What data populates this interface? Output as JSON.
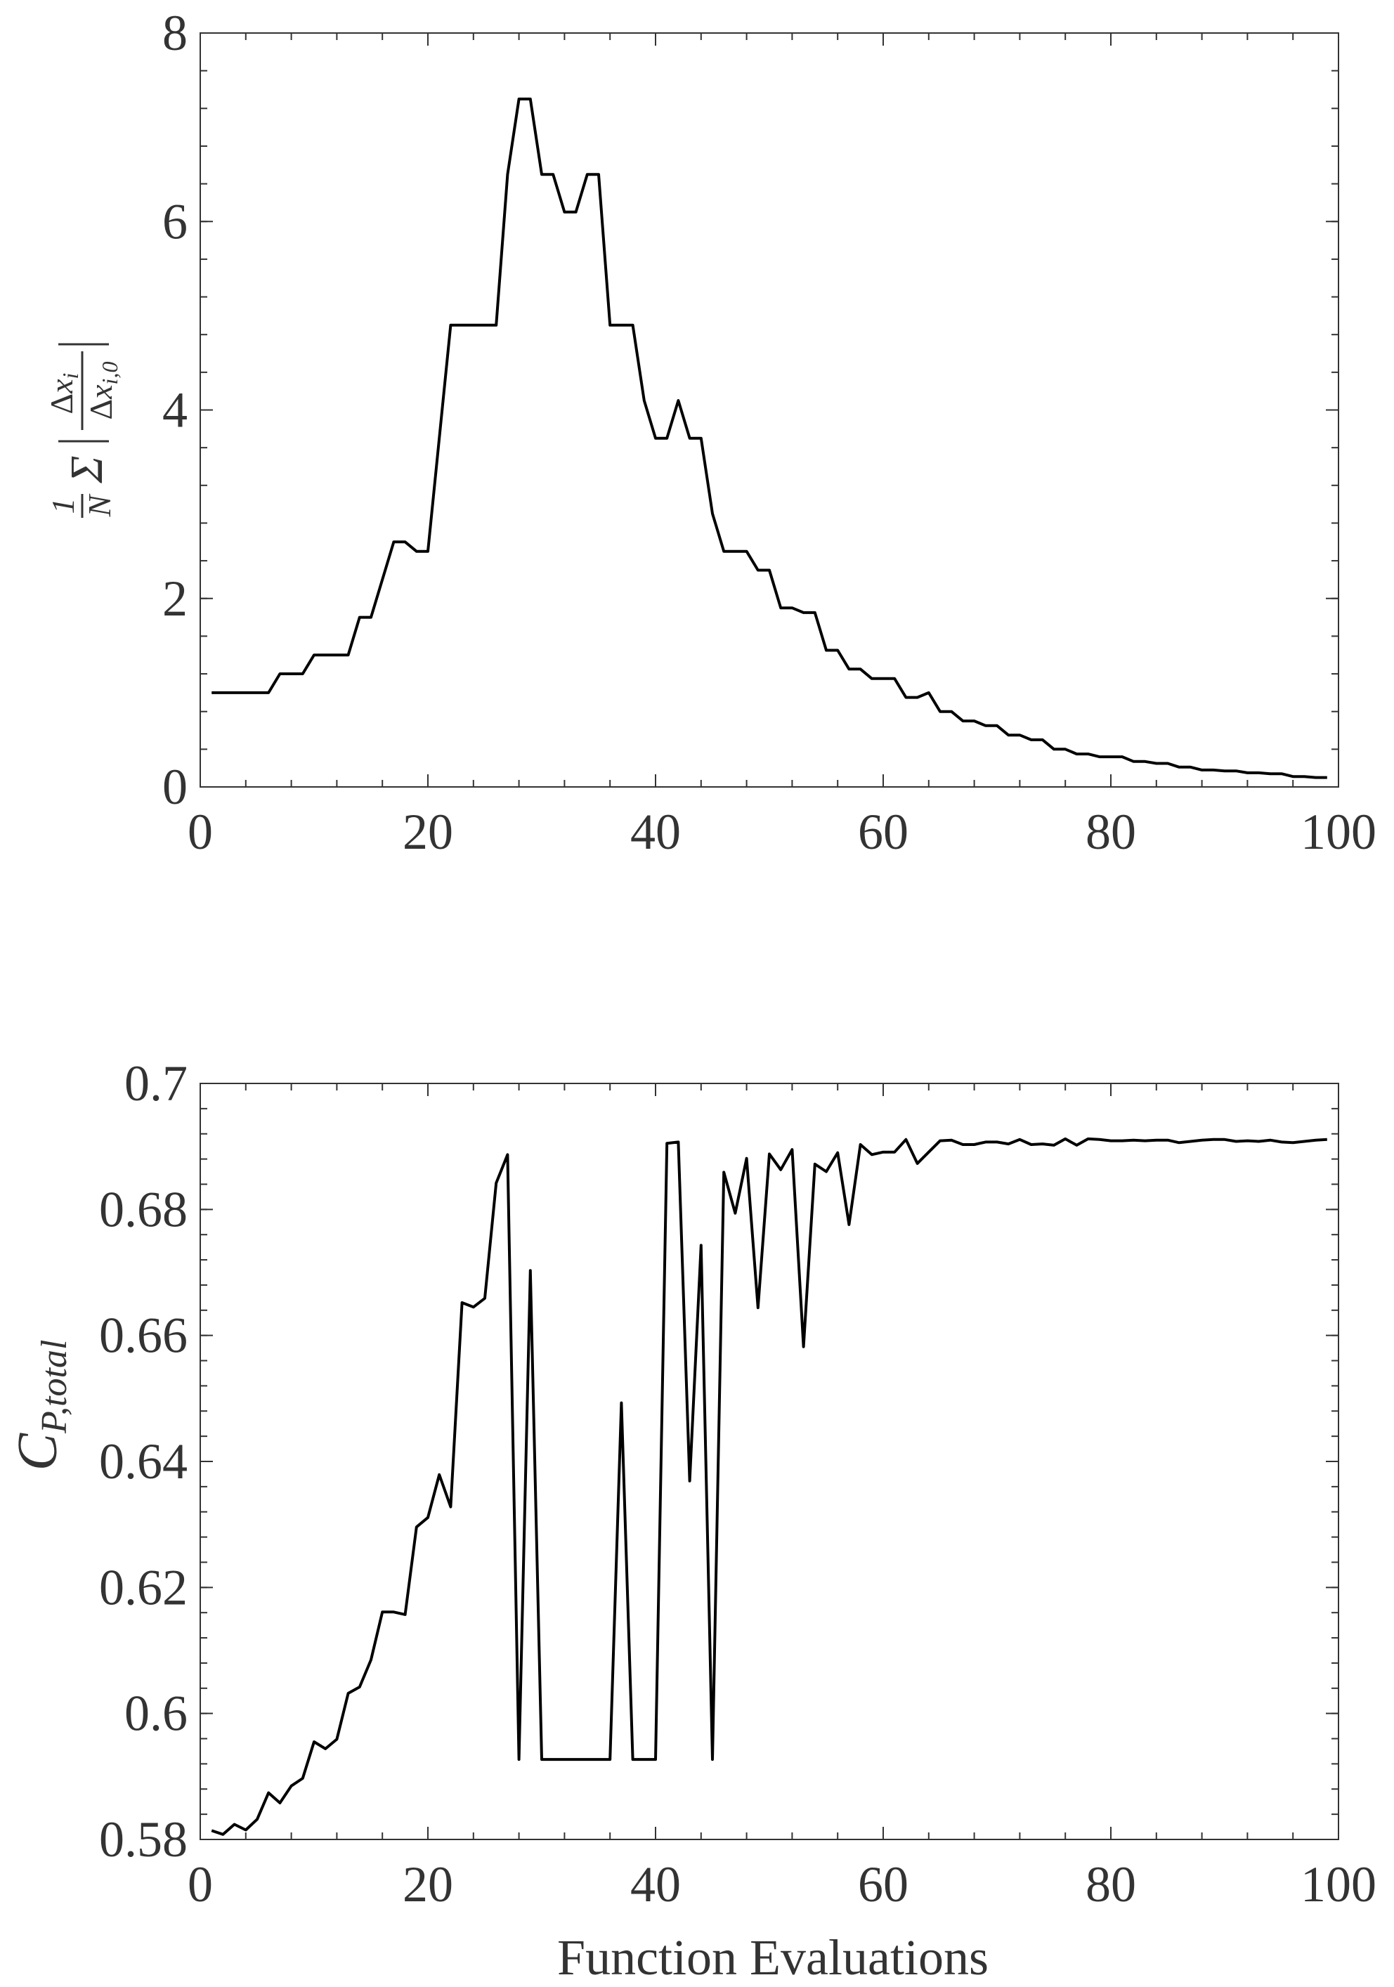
{
  "chart_data": [
    {
      "type": "line",
      "title": "",
      "xlabel": "",
      "ylabel": "1/N Σ |Δx_i / Δx_i,0|",
      "xlim": [
        0,
        100
      ],
      "ylim": [
        0,
        8
      ],
      "xticks": [
        0,
        20,
        40,
        60,
        80,
        100
      ],
      "yticks": [
        0,
        2,
        4,
        6,
        8
      ],
      "x_minor_step": 4,
      "y_minor_step": 0.4,
      "grid": false,
      "series": [
        {
          "x": [
            1,
            2,
            3,
            4,
            5,
            6,
            7,
            8,
            9,
            10,
            11,
            12,
            13,
            14,
            15,
            16,
            17,
            18,
            19,
            20,
            21,
            22,
            23,
            24,
            25,
            26,
            27,
            28,
            29,
            30,
            31,
            32,
            33,
            34,
            35,
            36,
            37,
            38,
            39,
            40,
            41,
            42,
            43,
            44,
            45,
            46,
            47,
            48,
            49,
            50,
            51,
            52,
            53,
            54,
            55,
            56,
            57,
            58,
            59,
            60,
            61,
            62,
            63,
            64,
            65,
            66,
            67,
            68,
            69,
            70,
            71,
            72,
            73,
            74,
            75,
            76,
            77,
            78,
            79,
            80,
            81,
            82,
            83,
            84,
            85,
            86,
            87,
            88,
            89,
            90,
            91,
            92,
            93,
            94,
            95,
            96,
            97,
            98,
            99
          ],
          "values": [
            1.0,
            1.0,
            1.0,
            1.0,
            1.0,
            1.0,
            1.2,
            1.2,
            1.2,
            1.4,
            1.4,
            1.4,
            1.4,
            1.8,
            1.8,
            2.2,
            2.6,
            2.6,
            2.5,
            2.5,
            3.7,
            4.9,
            4.9,
            4.9,
            4.9,
            4.9,
            6.5,
            7.3,
            7.3,
            6.5,
            6.5,
            6.1,
            6.1,
            6.5,
            6.5,
            4.9,
            4.9,
            4.9,
            4.1,
            3.7,
            3.7,
            4.1,
            3.7,
            3.7,
            2.9,
            2.5,
            2.5,
            2.5,
            2.3,
            2.3,
            1.9,
            1.9,
            1.85,
            1.85,
            1.45,
            1.45,
            1.25,
            1.25,
            1.15,
            1.15,
            1.15,
            0.95,
            0.95,
            1.0,
            0.8,
            0.8,
            0.7,
            0.7,
            0.65,
            0.65,
            0.55,
            0.55,
            0.5,
            0.5,
            0.4,
            0.4,
            0.35,
            0.35,
            0.32,
            0.32,
            0.32,
            0.27,
            0.27,
            0.25,
            0.25,
            0.21,
            0.21,
            0.18,
            0.18,
            0.17,
            0.17,
            0.15,
            0.15,
            0.14,
            0.14,
            0.11,
            0.11,
            0.1,
            0.1
          ]
        }
      ]
    },
    {
      "type": "line",
      "title": "",
      "xlabel": "Function Evaluations",
      "ylabel": "C_P,total",
      "xlim": [
        0,
        100
      ],
      "ylim": [
        0.58,
        0.7
      ],
      "xticks": [
        0,
        20,
        40,
        60,
        80,
        100
      ],
      "yticks": [
        0.58,
        0.6,
        0.62,
        0.64,
        0.66,
        0.68,
        0.7
      ],
      "ytick_labels": [
        "0.58",
        "0.6",
        "0.62",
        "0.64",
        "0.66",
        "0.68",
        "0.7"
      ],
      "x_minor_step": 4,
      "y_minor_step": 0.004,
      "grid": false,
      "series": [
        {
          "x": [
            1,
            2,
            3,
            4,
            5,
            6,
            7,
            8,
            9,
            10,
            11,
            12,
            13,
            14,
            15,
            16,
            17,
            18,
            19,
            20,
            21,
            22,
            23,
            24,
            25,
            26,
            27,
            28,
            29,
            30,
            31,
            32,
            33,
            34,
            35,
            36,
            37,
            38,
            39,
            40,
            41,
            42,
            43,
            44,
            45,
            46,
            47,
            48,
            49,
            50,
            51,
            52,
            53,
            54,
            55,
            56,
            57,
            58,
            59,
            60,
            61,
            62,
            63,
            64,
            65,
            66,
            67,
            68,
            69,
            70,
            71,
            72,
            73,
            74,
            75,
            76,
            77,
            78,
            79,
            80,
            81,
            82,
            83,
            84,
            85,
            86,
            87,
            88,
            89,
            90,
            91,
            92,
            93,
            94,
            95,
            96,
            97,
            98,
            99
          ],
          "values": [
            0.5814,
            0.5808,
            0.5824,
            0.5815,
            0.5832,
            0.5874,
            0.5858,
            0.5885,
            0.5897,
            0.5955,
            0.5944,
            0.5959,
            0.6032,
            0.6042,
            0.6085,
            0.6161,
            0.6161,
            0.6157,
            0.6296,
            0.6311,
            0.6379,
            0.6328,
            0.6652,
            0.6645,
            0.6659,
            0.6842,
            0.6887,
            0.5927,
            0.6703,
            0.5927,
            0.5927,
            0.5927,
            0.5927,
            0.5927,
            0.5927,
            0.5927,
            0.6493,
            0.5927,
            0.5927,
            0.5927,
            0.6905,
            0.6907,
            0.6369,
            0.6743,
            0.5927,
            0.6859,
            0.6794,
            0.6881,
            0.6644,
            0.6888,
            0.6863,
            0.6895,
            0.6582,
            0.6872,
            0.686,
            0.689,
            0.6776,
            0.6903,
            0.6887,
            0.6891,
            0.6891,
            0.6911,
            0.6873,
            0.6891,
            0.6909,
            0.691,
            0.6903,
            0.6903,
            0.6907,
            0.6907,
            0.6904,
            0.6911,
            0.6903,
            0.6904,
            0.6902,
            0.6912,
            0.6902,
            0.6912,
            0.6911,
            0.6909,
            0.6909,
            0.691,
            0.6909,
            0.691,
            0.691,
            0.6906,
            0.6908,
            0.691,
            0.6911,
            0.6911,
            0.6908,
            0.6909,
            0.6908,
            0.691,
            0.6907,
            0.6906,
            0.6908,
            0.691,
            0.6911
          ]
        }
      ]
    }
  ]
}
